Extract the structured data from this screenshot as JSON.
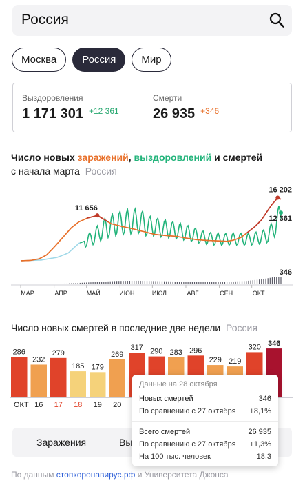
{
  "search": {
    "query": "Россия"
  },
  "pills": [
    {
      "label": "Москва",
      "active": false
    },
    {
      "label": "Россия",
      "active": true
    },
    {
      "label": "Мир",
      "active": false
    }
  ],
  "stats": {
    "recovered": {
      "label": "Выздоровления",
      "value": "1 171 301",
      "delta": "+12 361"
    },
    "deaths": {
      "label": "Смерти",
      "value": "26 935",
      "delta": "+346"
    }
  },
  "main_title": {
    "p1": "Число новых ",
    "infections": "заражений",
    "p2": ", ",
    "recoveries": "выздоровлений",
    "p3": " и ",
    "deaths": "смертей",
    "p4": "с начала марта",
    "region": "Россия"
  },
  "bars_title": {
    "text": "Число новых смертей в последние две недели",
    "region": "Россия"
  },
  "tabs": {
    "infections": "Заражения",
    "recoveries": "Выздоровления"
  },
  "tooltip": {
    "date": "Данные на 28 октября",
    "new_deaths_label": "Новых смертей",
    "new_deaths_value": "346",
    "cmp1_label": "По сравнению с 27 октября",
    "cmp1_value": "+8,1%",
    "total_label": "Всего смертей",
    "total_value": "26 935",
    "cmp2_label": "По сравнению с 27 октября",
    "cmp2_value": "+1,3%",
    "per100_label": "На 100 тыс. человек",
    "per100_value": "18,3"
  },
  "footer": {
    "prefix": "По данным ",
    "link": "стопкоронавирус.рф",
    "suffix": " и Университета Джонса"
  },
  "colors": {
    "infections": "#e8702a",
    "infections_late": "#c03a2a",
    "recoveries": "#22b37a",
    "recoveries_early": "#9fd8e8",
    "deaths": "#5a5a66",
    "bar_dark": "#a8122e",
    "bar_red": "#e0432a",
    "bar_orange": "#f0a050",
    "bar_yellow": "#f5d27a"
  },
  "chart_data": [
    {
      "type": "line",
      "months": [
        "МАР",
        "АПР",
        "МАЙ",
        "ИЮН",
        "ИЮЛ",
        "АВГ",
        "СЕН",
        "ОКТ"
      ],
      "day_range": [
        1,
        242
      ],
      "ylim": [
        0,
        17000
      ],
      "annotations": [
        {
          "label": "11 656",
          "day": 72,
          "value": 11656
        },
        {
          "label": "16 202",
          "day": 239,
          "value": 16202
        },
        {
          "label": "12 361",
          "day": 242,
          "value": 12361
        },
        {
          "label": "346",
          "day": 242,
          "value": 346
        }
      ],
      "series": [
        {
          "name": "заражений",
          "points": [
            [
              1,
              0
            ],
            [
              10,
              100
            ],
            [
              18,
              500
            ],
            [
              25,
              1500
            ],
            [
              32,
              3500
            ],
            [
              40,
              6000
            ],
            [
              48,
              8500
            ],
            [
              55,
              10000
            ],
            [
              63,
              11000
            ],
            [
              70,
              11500
            ],
            [
              72,
              11656
            ],
            [
              76,
              11000
            ],
            [
              85,
              9500
            ],
            [
              95,
              8800
            ],
            [
              105,
              8200
            ],
            [
              115,
              7500
            ],
            [
              125,
              6800
            ],
            [
              135,
              6500
            ],
            [
              145,
              6300
            ],
            [
              155,
              5800
            ],
            [
              165,
              5400
            ],
            [
              175,
              5200
            ],
            [
              185,
              5100
            ],
            [
              192,
              5000
            ],
            [
              198,
              5300
            ],
            [
              205,
              6000
            ],
            [
              212,
              7500
            ],
            [
              218,
              8800
            ],
            [
              224,
              10500
            ],
            [
              230,
              13000
            ],
            [
              234,
              14600
            ],
            [
              237,
              15500
            ],
            [
              239,
              16202
            ],
            [
              242,
              15800
            ]
          ]
        },
        {
          "name": "выздоровлений",
          "points": [
            [
              1,
              0
            ],
            [
              20,
              200
            ],
            [
              35,
              900
            ],
            [
              45,
              2000
            ],
            [
              55,
              4500
            ],
            [
              65,
              5500
            ],
            [
              72,
              6800
            ],
            [
              80,
              8500
            ],
            [
              90,
              9500
            ],
            [
              100,
              10000
            ],
            [
              110,
              10200
            ],
            [
              120,
              9000
            ],
            [
              130,
              8500
            ],
            [
              140,
              8000
            ],
            [
              150,
              7500
            ],
            [
              160,
              6800
            ],
            [
              170,
              6000
            ],
            [
              180,
              5600
            ],
            [
              190,
              5500
            ],
            [
              200,
              5600
            ],
            [
              210,
              5500
            ],
            [
              220,
              5800
            ],
            [
              230,
              6500
            ],
            [
              236,
              8500
            ],
            [
              240,
              11000
            ],
            [
              242,
              12361
            ]
          ]
        },
        {
          "name": "смертей",
          "points": [
            [
              1,
              0
            ],
            [
              30,
              10
            ],
            [
              50,
              50
            ],
            [
              70,
              100
            ],
            [
              90,
              150
            ],
            [
              110,
              160
            ],
            [
              130,
              140
            ],
            [
              150,
              120
            ],
            [
              170,
              110
            ],
            [
              190,
              110
            ],
            [
              210,
              150
            ],
            [
              225,
              230
            ],
            [
              235,
              320
            ],
            [
              242,
              346
            ]
          ]
        }
      ]
    },
    {
      "type": "bar",
      "categories": [
        "ОКТ",
        "16",
        "17",
        "18",
        "19",
        "20",
        "",
        "",
        "",
        "",
        "",
        "",
        "",
        ""
      ],
      "values": [
        286,
        232,
        279,
        185,
        179,
        269,
        317,
        290,
        283,
        296,
        229,
        219,
        320,
        346
      ],
      "highlighted_index": 13
    }
  ]
}
